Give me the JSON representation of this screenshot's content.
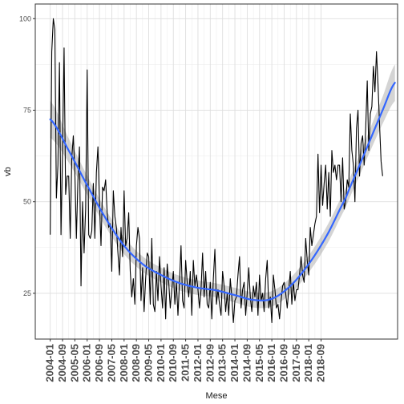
{
  "chart_data": {
    "type": "line",
    "title": "",
    "xlabel": "Mese",
    "ylabel": "vb",
    "ylim": [
      12.5,
      104
    ],
    "y_ticks": [
      25,
      50,
      75,
      100
    ],
    "x_start": "2004-01",
    "x_end": "2019-04",
    "x_ticks": [
      "2004-01",
      "2004-09",
      "2005-05",
      "2006-01",
      "2006-09",
      "2007-05",
      "2008-01",
      "2008-09",
      "2009-05",
      "2010-01",
      "2010-09",
      "2011-05",
      "2012-01",
      "2012-09",
      "2013-05",
      "2014-01",
      "2014-09",
      "2015-05",
      "2016-01",
      "2016-09",
      "2017-05",
      "2018-01",
      "2018-09"
    ],
    "grid": true,
    "series": [
      {
        "style": "raw",
        "color": "#000000",
        "values": [
          41,
          91,
          100,
          97,
          51,
          60,
          88,
          41,
          64,
          92,
          52,
          57,
          57,
          40,
          62,
          68,
          58,
          40,
          56,
          65,
          27,
          50,
          36,
          48,
          86,
          41,
          40,
          42,
          55,
          40,
          58,
          65,
          50,
          38,
          54,
          53,
          56,
          47,
          43,
          44,
          31,
          53,
          46,
          43,
          36,
          30,
          43,
          35,
          53,
          38,
          40,
          47,
          31,
          24,
          29,
          22,
          38,
          43,
          40,
          23,
          32,
          20,
          29,
          36,
          35,
          22,
          40,
          22,
          20,
          31,
          23,
          35,
          27,
          21,
          32,
          18,
          33,
          28,
          21,
          26,
          31,
          22,
          28,
          19,
          28,
          38,
          23,
          21,
          34,
          28,
          24,
          31,
          19,
          34,
          27,
          30,
          26,
          21,
          26,
          36,
          24,
          31,
          22,
          21,
          28,
          18,
          29,
          37,
          22,
          26,
          22,
          19,
          31,
          27,
          20,
          25,
          19,
          29,
          24,
          17,
          23,
          24,
          30,
          35,
          21,
          26,
          28,
          19,
          25,
          32,
          24,
          20,
          27,
          24,
          28,
          19,
          30,
          23,
          25,
          20,
          29,
          34,
          21,
          24,
          17,
          30,
          26,
          21,
          22,
          18,
          23,
          27,
          28,
          25,
          21,
          26,
          31,
          22,
          28,
          23,
          26,
          26,
          30,
          35,
          30,
          28,
          40,
          34,
          30,
          43,
          38,
          41,
          44,
          46,
          63,
          47,
          60,
          49,
          55,
          60,
          48,
          58,
          46,
          64,
          58,
          60,
          56,
          60,
          60,
          50,
          62,
          48,
          50,
          56,
          54,
          74,
          64,
          60,
          50,
          70,
          75,
          57,
          66,
          68,
          60,
          70,
          83,
          64,
          74,
          76,
          87,
          80,
          91,
          82,
          71,
          61,
          57
        ]
      },
      {
        "style": "smooth",
        "color": "#3366ff",
        "band_color": "#999999",
        "x_index": [
          0,
          12,
          24,
          36,
          48,
          60,
          72,
          84,
          96,
          108,
          120,
          132,
          144,
          156,
          168,
          180,
          192,
          200,
          208,
          216,
          224
        ],
        "values": [
          72.5,
          64,
          54.5,
          45.5,
          38,
          33,
          30,
          27.8,
          26.5,
          25.8,
          24.5,
          23.2,
          23.5,
          27,
          33,
          41,
          51,
          59,
          67,
          75,
          82.5
        ],
        "band_halfwidth": [
          5,
          3.3,
          2.6,
          2.4,
          2.3,
          2.1,
          2,
          2,
          2,
          1.9,
          2,
          2.1,
          2.1,
          2.2,
          2.3,
          2.5,
          2.6,
          2.8,
          3.1,
          3.7,
          5
        ]
      }
    ]
  }
}
